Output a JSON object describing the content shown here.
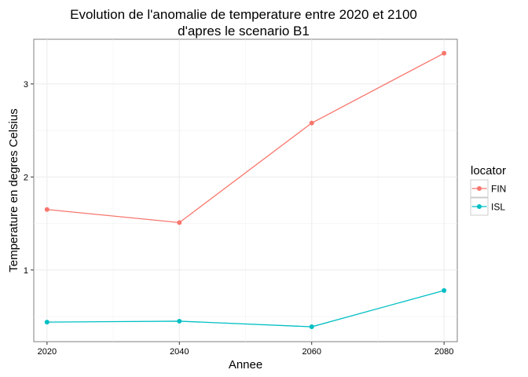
{
  "chart_data": {
    "type": "line",
    "title": "Evolution de l'anomalie de temperature entre 2020 et 2100",
    "subtitle": "d'apres le scenario B1",
    "xlabel": "Annee",
    "ylabel": "Temperature en degres Celsius",
    "x": [
      2020,
      2040,
      2060,
      2080
    ],
    "x_ticks": [
      "2020",
      "2040",
      "2060",
      "2080"
    ],
    "y_ticks": [
      "1",
      "2",
      "3"
    ],
    "xlim": [
      2018,
      2082
    ],
    "ylim": [
      0.23,
      3.48
    ],
    "grid": true,
    "legend": {
      "title": "locator",
      "position": "right"
    },
    "series": [
      {
        "name": "FIN",
        "color": "#F8766D",
        "values": [
          1.65,
          1.51,
          2.58,
          3.33
        ]
      },
      {
        "name": "ISL",
        "color": "#00BFC4",
        "values": [
          0.44,
          0.45,
          0.39,
          0.78
        ]
      }
    ]
  }
}
